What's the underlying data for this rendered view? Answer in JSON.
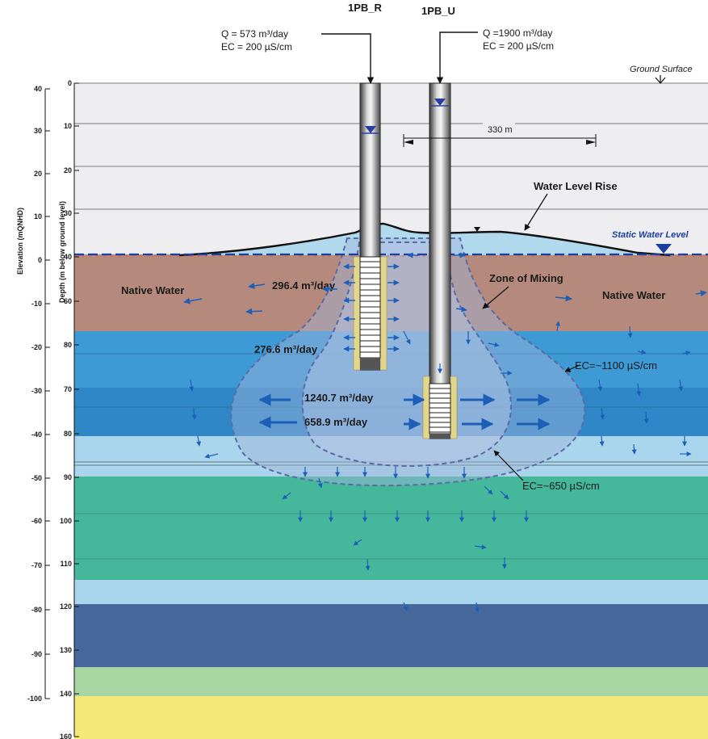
{
  "wells": {
    "left": {
      "name": "1PB_R",
      "q": "Q = 573 m³/day",
      "ec": "EC = 200 µS/cm"
    },
    "right": {
      "name": "1PB_U",
      "q": "Q =1900 m³/day",
      "ec": "EC = 200 µS/cm"
    }
  },
  "labels": {
    "ground_surface": "Ground Surface",
    "static_water_level": "Static Water Level",
    "water_level_rise": "Water Level Rise",
    "distance": "330 m",
    "native_water_left": "Native Water",
    "native_water_right": "Native Water",
    "zone_of_mixing": "Zone of Mixing",
    "ec_outer": "EC=~1100 µS/cm",
    "ec_inner": "EC=~650 µS/cm"
  },
  "flows": {
    "f1": "296.4 m³/day",
    "f2": "276.6 m³/day",
    "f3": "1240.7 m³/day",
    "f4": "658.9 m³/day"
  },
  "axes": {
    "elevation_title": "Elevation (mQNHD)",
    "depth_title": "Depth (m below ground level)",
    "elevation_ticks": [
      "40",
      "30",
      "20",
      "10",
      "0",
      "-10",
      "-20",
      "-30",
      "-40",
      "-50",
      "-60",
      "-70",
      "-80",
      "-90",
      "-100"
    ],
    "depth_ticks": [
      "0",
      "10",
      "20",
      "30",
      "40",
      "60",
      "80",
      "70",
      "80",
      "90",
      "100",
      "110",
      "120",
      "130",
      "140",
      "160"
    ]
  },
  "colors": {
    "unsaturated": "#eeeef0",
    "native_brown": "#b58a7c",
    "aquifer_blue_1": "#3d9ad4",
    "aquifer_blue_2": "#2f87c8",
    "light_blue": "#a9d6ec",
    "green": "#45b89b",
    "dark_blue": "#46689a",
    "pale_green": "#a8d5a2",
    "yellow": "#f4e878",
    "mixing_zone": "#8fa6d3",
    "arrow": "#1c5fb8",
    "static_line": "#1b3fa1"
  }
}
